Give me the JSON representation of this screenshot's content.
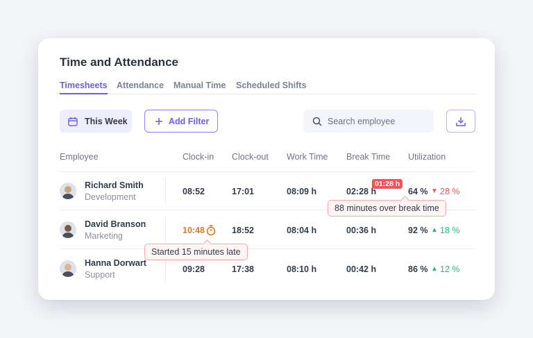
{
  "title": "Time and Attendance",
  "tabs": [
    "Timesheets",
    "Attendance",
    "Manual Time",
    "Scheduled Shifts"
  ],
  "toolbar": {
    "week": "This Week",
    "add_filter": "Add Filter",
    "search_placeholder": "Search employee"
  },
  "columns": [
    "Employee",
    "Clock-in",
    "Clock-out",
    "Work Time",
    "Break Time",
    "Utilization"
  ],
  "rows": [
    {
      "name": "Richard Smith",
      "dept": "Development",
      "clock_in": "08:52",
      "clock_out": "17:01",
      "work": "08:09 h",
      "break": "02:28 h",
      "util": "64 %",
      "delta": "28 %",
      "trend": "down"
    },
    {
      "name": "David Branson",
      "dept": "Marketing",
      "clock_in": "10:48",
      "clock_out": "18:52",
      "work": "08:04 h",
      "break": "00:36 h",
      "util": "92 %",
      "delta": "18 %",
      "trend": "up"
    },
    {
      "name": "Hanna Dorwart",
      "dept": "Support",
      "clock_in": "09:28",
      "clock_out": "17:38",
      "work": "08:10 h",
      "break": "00:42 h",
      "util": "86 %",
      "delta": "12 %",
      "trend": "up"
    }
  ],
  "break_badge": "01:28 h",
  "tooltips": {
    "break": "88 minutes over break time",
    "late": "Started 15 minutes late"
  },
  "colors": {
    "accent": "#6a5ef0",
    "late": "#e07b1f",
    "up": "#1fbf7a",
    "down": "#f2545b"
  }
}
